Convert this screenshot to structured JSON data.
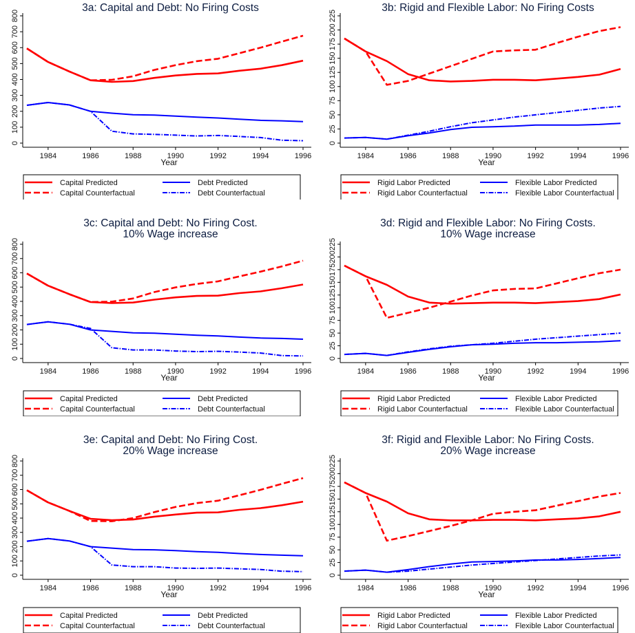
{
  "colors": {
    "predicted_red": "#ff0000",
    "predicted_blue": "#0000ff",
    "title": "#0c1c40",
    "axis": "#000000"
  },
  "chart_data": [
    {
      "type": "line",
      "title": [
        "3a: Capital and Debt: No Firing Costs"
      ],
      "xlabel": "Year",
      "ylabel": "",
      "x": [
        1983,
        1984,
        1985,
        1986,
        1987,
        1988,
        1989,
        1990,
        1991,
        1992,
        1993,
        1994,
        1995,
        1996
      ],
      "xticks": [
        "1984",
        "1986",
        "1988",
        "1990",
        "1992",
        "1994",
        "1996"
      ],
      "yticks": [
        "0",
        "100",
        "200",
        "300",
        "400",
        "500",
        "600",
        "700",
        "800"
      ],
      "ylim": [
        0,
        800
      ],
      "legend_position": "bottom",
      "series": [
        {
          "name": "Capital Predicted",
          "style": "solid",
          "color": "red",
          "values": [
            595,
            510,
            450,
            395,
            385,
            390,
            410,
            425,
            435,
            438,
            455,
            468,
            490,
            518
          ]
        },
        {
          "name": "Debt Predicted",
          "style": "solid",
          "color": "blue",
          "values": [
            238,
            255,
            240,
            200,
            188,
            178,
            176,
            170,
            163,
            158,
            150,
            143,
            140,
            135
          ]
        },
        {
          "name": "Capital Counterfactual",
          "style": "dashed",
          "color": "red",
          "values": [
            595,
            510,
            450,
            395,
            398,
            420,
            460,
            490,
            515,
            530,
            565,
            600,
            638,
            675
          ]
        },
        {
          "name": "Debt Counterfactual",
          "style": "dashdot",
          "color": "blue",
          "values": [
            238,
            255,
            240,
            200,
            75,
            58,
            55,
            50,
            45,
            48,
            42,
            35,
            18,
            15
          ]
        }
      ]
    },
    {
      "type": "line",
      "title": [
        "3b: Rigid and Flexible Labor: No Firing Costs"
      ],
      "xlabel": "Year",
      "ylabel": "",
      "x": [
        1983,
        1984,
        1985,
        1986,
        1987,
        1988,
        1989,
        1990,
        1991,
        1992,
        1993,
        1994,
        1995,
        1996
      ],
      "xticks": [
        "1984",
        "1986",
        "1988",
        "1990",
        "1992",
        "1994",
        "1996"
      ],
      "yticks": [
        "0",
        "25",
        "50",
        "75",
        "100",
        "125",
        "150",
        "175",
        "200",
        "225"
      ],
      "ylim": [
        0,
        225
      ],
      "legend_position": "bottom",
      "series": [
        {
          "name": "Rigid Labor Predicted",
          "style": "solid",
          "color": "red",
          "values": [
            185,
            162,
            145,
            122,
            111,
            109,
            110,
            112,
            112,
            111,
            114,
            117,
            121,
            131
          ]
        },
        {
          "name": "Flexible Labor Predicted",
          "style": "solid",
          "color": "blue",
          "values": [
            9,
            10,
            7,
            13,
            18,
            24,
            28,
            29,
            30,
            32,
            32,
            32,
            33,
            35
          ]
        },
        {
          "name": "Rigid Labor Counterfactual",
          "style": "dashed",
          "color": "red",
          "values": [
            185,
            162,
            103,
            110,
            123,
            136,
            149,
            162,
            164,
            165,
            177,
            188,
            198,
            205
          ]
        },
        {
          "name": "Flexible Labor Counterfactual",
          "style": "dashdot",
          "color": "blue",
          "values": [
            9,
            10,
            7,
            14,
            21,
            29,
            36,
            41,
            46,
            50,
            54,
            58,
            62,
            65
          ]
        }
      ]
    },
    {
      "type": "line",
      "title": [
        "3c: Capital and Debt: No Firing Cost.",
        "10% Wage increase"
      ],
      "xlabel": "Year",
      "ylabel": "",
      "x": [
        1983,
        1984,
        1985,
        1986,
        1987,
        1988,
        1989,
        1990,
        1991,
        1992,
        1993,
        1994,
        1995,
        1996
      ],
      "xticks": [
        "1984",
        "1986",
        "1988",
        "1990",
        "1992",
        "1994",
        "1996"
      ],
      "yticks": [
        "0",
        "100",
        "200",
        "300",
        "400",
        "500",
        "600",
        "700",
        "800"
      ],
      "ylim": [
        0,
        800
      ],
      "legend_position": "bottom",
      "series": [
        {
          "name": "Capital Predicted",
          "style": "solid",
          "color": "red",
          "values": [
            595,
            510,
            450,
            395,
            388,
            392,
            412,
            428,
            438,
            440,
            458,
            470,
            492,
            518
          ]
        },
        {
          "name": "Debt Predicted",
          "style": "solid",
          "color": "blue",
          "values": [
            238,
            257,
            240,
            200,
            190,
            180,
            177,
            170,
            163,
            158,
            150,
            143,
            140,
            135
          ]
        },
        {
          "name": "Capital Counterfactual",
          "style": "dashed",
          "color": "red",
          "values": [
            595,
            510,
            450,
            395,
            398,
            420,
            465,
            498,
            522,
            540,
            575,
            608,
            645,
            685
          ]
        },
        {
          "name": "Debt Counterfactual",
          "style": "dashdot",
          "color": "blue",
          "values": [
            238,
            257,
            240,
            210,
            75,
            60,
            60,
            52,
            48,
            50,
            45,
            38,
            20,
            18
          ]
        }
      ]
    },
    {
      "type": "line",
      "title": [
        "3d: Rigid and Flexible Labor: No Firing Costs.",
        "10% Wage increase"
      ],
      "xlabel": "Year",
      "ylabel": "",
      "x": [
        1983,
        1984,
        1985,
        1986,
        1987,
        1988,
        1989,
        1990,
        1991,
        1992,
        1993,
        1994,
        1995,
        1996
      ],
      "xticks": [
        "1984",
        "1986",
        "1988",
        "1990",
        "1992",
        "1994",
        "1996"
      ],
      "yticks": [
        "0",
        "25",
        "50",
        "75",
        "100",
        "125",
        "150",
        "175",
        "200",
        "225"
      ],
      "ylim": [
        0,
        225
      ],
      "legend_position": "bottom",
      "series": [
        {
          "name": "Rigid Labor Predicted",
          "style": "solid",
          "color": "red",
          "values": [
            183,
            162,
            145,
            122,
            110,
            108,
            109,
            110,
            110,
            109,
            111,
            113,
            117,
            126
          ]
        },
        {
          "name": "Flexible Labor Predicted",
          "style": "solid",
          "color": "blue",
          "values": [
            8,
            10,
            6,
            12,
            18,
            23,
            27,
            28,
            30,
            31,
            31,
            32,
            33,
            35
          ]
        },
        {
          "name": "Rigid Labor Counterfactual",
          "style": "dashed",
          "color": "red",
          "values": [
            183,
            162,
            80,
            90,
            100,
            112,
            124,
            134,
            137,
            138,
            148,
            158,
            168,
            175
          ]
        },
        {
          "name": "Flexible Labor Counterfactual",
          "style": "dashdot",
          "color": "blue",
          "values": [
            8,
            10,
            6,
            13,
            19,
            24,
            27,
            30,
            34,
            38,
            41,
            44,
            47,
            50
          ]
        }
      ]
    },
    {
      "type": "line",
      "title": [
        "3e: Capital and Debt: No Firing Cost.",
        "20% Wage increase"
      ],
      "xlabel": "Year",
      "ylabel": "",
      "x": [
        1983,
        1984,
        1985,
        1986,
        1987,
        1988,
        1989,
        1990,
        1991,
        1992,
        1993,
        1994,
        1995,
        1996
      ],
      "xticks": [
        "1984",
        "1986",
        "1988",
        "1990",
        "1992",
        "1994",
        "1996"
      ],
      "yticks": [
        "0",
        "100",
        "200",
        "300",
        "400",
        "500",
        "600",
        "700",
        "800"
      ],
      "ylim": [
        0,
        800
      ],
      "legend_position": "bottom",
      "series": [
        {
          "name": "Capital Predicted",
          "style": "solid",
          "color": "red",
          "values": [
            595,
            510,
            450,
            395,
            385,
            390,
            410,
            425,
            438,
            440,
            458,
            470,
            490,
            515
          ]
        },
        {
          "name": "Debt Predicted",
          "style": "solid",
          "color": "blue",
          "values": [
            238,
            257,
            240,
            200,
            190,
            180,
            178,
            172,
            165,
            160,
            152,
            145,
            140,
            136
          ]
        },
        {
          "name": "Capital Counterfactual",
          "style": "dashed",
          "color": "red",
          "values": [
            595,
            510,
            450,
            380,
            378,
            400,
            442,
            478,
            505,
            522,
            560,
            598,
            640,
            680
          ]
        },
        {
          "name": "Debt Counterfactual",
          "style": "dashdot",
          "color": "blue",
          "values": [
            238,
            257,
            240,
            200,
            72,
            60,
            60,
            50,
            48,
            50,
            45,
            40,
            28,
            25
          ]
        }
      ]
    },
    {
      "type": "line",
      "title": [
        "3f: Rigid and Flexible Labor: No Firing Costs.",
        "20% Wage increase"
      ],
      "xlabel": "Year",
      "ylabel": "",
      "x": [
        1983,
        1984,
        1985,
        1986,
        1987,
        1988,
        1989,
        1990,
        1991,
        1992,
        1993,
        1994,
        1995,
        1996
      ],
      "xticks": [
        "1984",
        "1986",
        "1988",
        "1990",
        "1992",
        "1994",
        "1996"
      ],
      "yticks": [
        "0",
        "25",
        "50",
        "75",
        "100",
        "125",
        "150",
        "175",
        "200",
        "225"
      ],
      "ylim": [
        0,
        225
      ],
      "legend_position": "bottom",
      "series": [
        {
          "name": "Rigid Labor Predicted",
          "style": "solid",
          "color": "red",
          "values": [
            183,
            162,
            145,
            122,
            110,
            108,
            108,
            109,
            109,
            108,
            110,
            112,
            116,
            125
          ]
        },
        {
          "name": "Flexible Labor Predicted",
          "style": "solid",
          "color": "blue",
          "values": [
            8,
            10,
            6,
            11,
            17,
            22,
            26,
            27,
            28,
            30,
            30,
            31,
            33,
            35
          ]
        },
        {
          "name": "Rigid Labor Counterfactual",
          "style": "dashed",
          "color": "red",
          "values": [
            183,
            162,
            68,
            77,
            87,
            97,
            108,
            121,
            125,
            128,
            137,
            146,
            155,
            162
          ]
        },
        {
          "name": "Flexible Labor Counterfactual",
          "style": "dashdot",
          "color": "blue",
          "values": [
            8,
            10,
            6,
            8,
            12,
            16,
            20,
            23,
            26,
            29,
            32,
            35,
            38,
            40
          ]
        }
      ]
    }
  ]
}
